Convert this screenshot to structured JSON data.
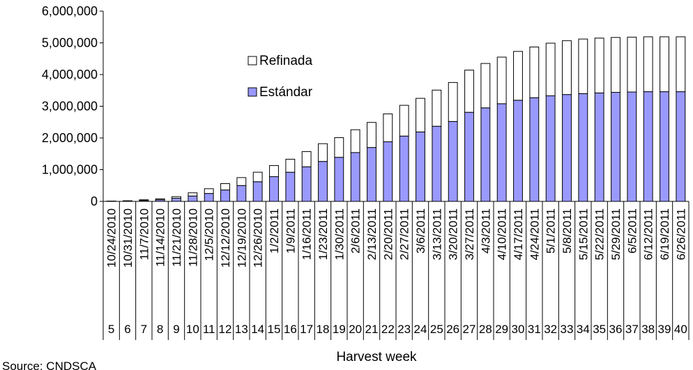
{
  "chart_data": {
    "type": "stacked-bar",
    "x_label": "Harvest week",
    "source": "Source: CNDSCA",
    "categories": [
      "10/24/2010",
      "10/31/2010",
      "11/7/2010",
      "11/14/2010",
      "11/21/2010",
      "11/28/2010",
      "12/5/2010",
      "12/12/2010",
      "12/19/2010",
      "12/26/2010",
      "1/2/2011",
      "1/9/2011",
      "1/16/2011",
      "1/23/2011",
      "1/30/2011",
      "2/6/2011",
      "2/13/2011",
      "2/20/2011",
      "2/27/2011",
      "3/6/2011",
      "3/13/2011",
      "3/20/2011",
      "3/27/2011",
      "4/3/2011",
      "4/10/2011",
      "4/17/2011",
      "4/24/2011",
      "5/1/2011",
      "5/8/2011",
      "5/15/2011",
      "5/22/2011",
      "5/29/2011",
      "6/5/2011",
      "6/12/2011",
      "6/19/2011",
      "6/26/2011"
    ],
    "weeks": [
      5,
      6,
      7,
      8,
      9,
      10,
      11,
      12,
      13,
      14,
      15,
      16,
      17,
      18,
      19,
      20,
      21,
      22,
      23,
      24,
      25,
      26,
      27,
      28,
      29,
      30,
      31,
      32,
      33,
      34,
      35,
      36,
      37,
      38,
      39,
      40
    ],
    "series": [
      {
        "name": "Estándar",
        "color": "#9999ff",
        "values": [
          5000,
          10000,
          30000,
          50000,
          100000,
          170000,
          250000,
          360000,
          500000,
          620000,
          780000,
          920000,
          1090000,
          1260000,
          1390000,
          1540000,
          1700000,
          1880000,
          2060000,
          2190000,
          2370000,
          2520000,
          2810000,
          2950000,
          3080000,
          3190000,
          3270000,
          3330000,
          3370000,
          3400000,
          3420000,
          3440000,
          3450000,
          3460000,
          3460000,
          3460000
        ]
      },
      {
        "name": "Refinada",
        "color": "#ffffff",
        "values": [
          5000,
          10000,
          20000,
          30000,
          50000,
          100000,
          150000,
          200000,
          250000,
          300000,
          350000,
          410000,
          480000,
          560000,
          620000,
          720000,
          790000,
          880000,
          970000,
          1060000,
          1140000,
          1230000,
          1330000,
          1400000,
          1470000,
          1540000,
          1600000,
          1660000,
          1700000,
          1720000,
          1730000,
          1730000,
          1730000,
          1730000,
          1730000,
          1730000
        ]
      }
    ],
    "ylim": [
      0,
      6000000
    ],
    "yticks": [
      0,
      {
        "value": 1000000,
        "label": "1,000,000"
      },
      {
        "value": 2000000,
        "label": "2,000,000"
      },
      {
        "value": 3000000,
        "label": "3,000,000"
      },
      {
        "value": 4000000,
        "label": "4,000,000"
      },
      {
        "value": 5000000,
        "label": "5,000,000"
      },
      {
        "value": 6000000,
        "label": "6,000,000"
      }
    ],
    "legend": "upper-left",
    "grid": false
  }
}
